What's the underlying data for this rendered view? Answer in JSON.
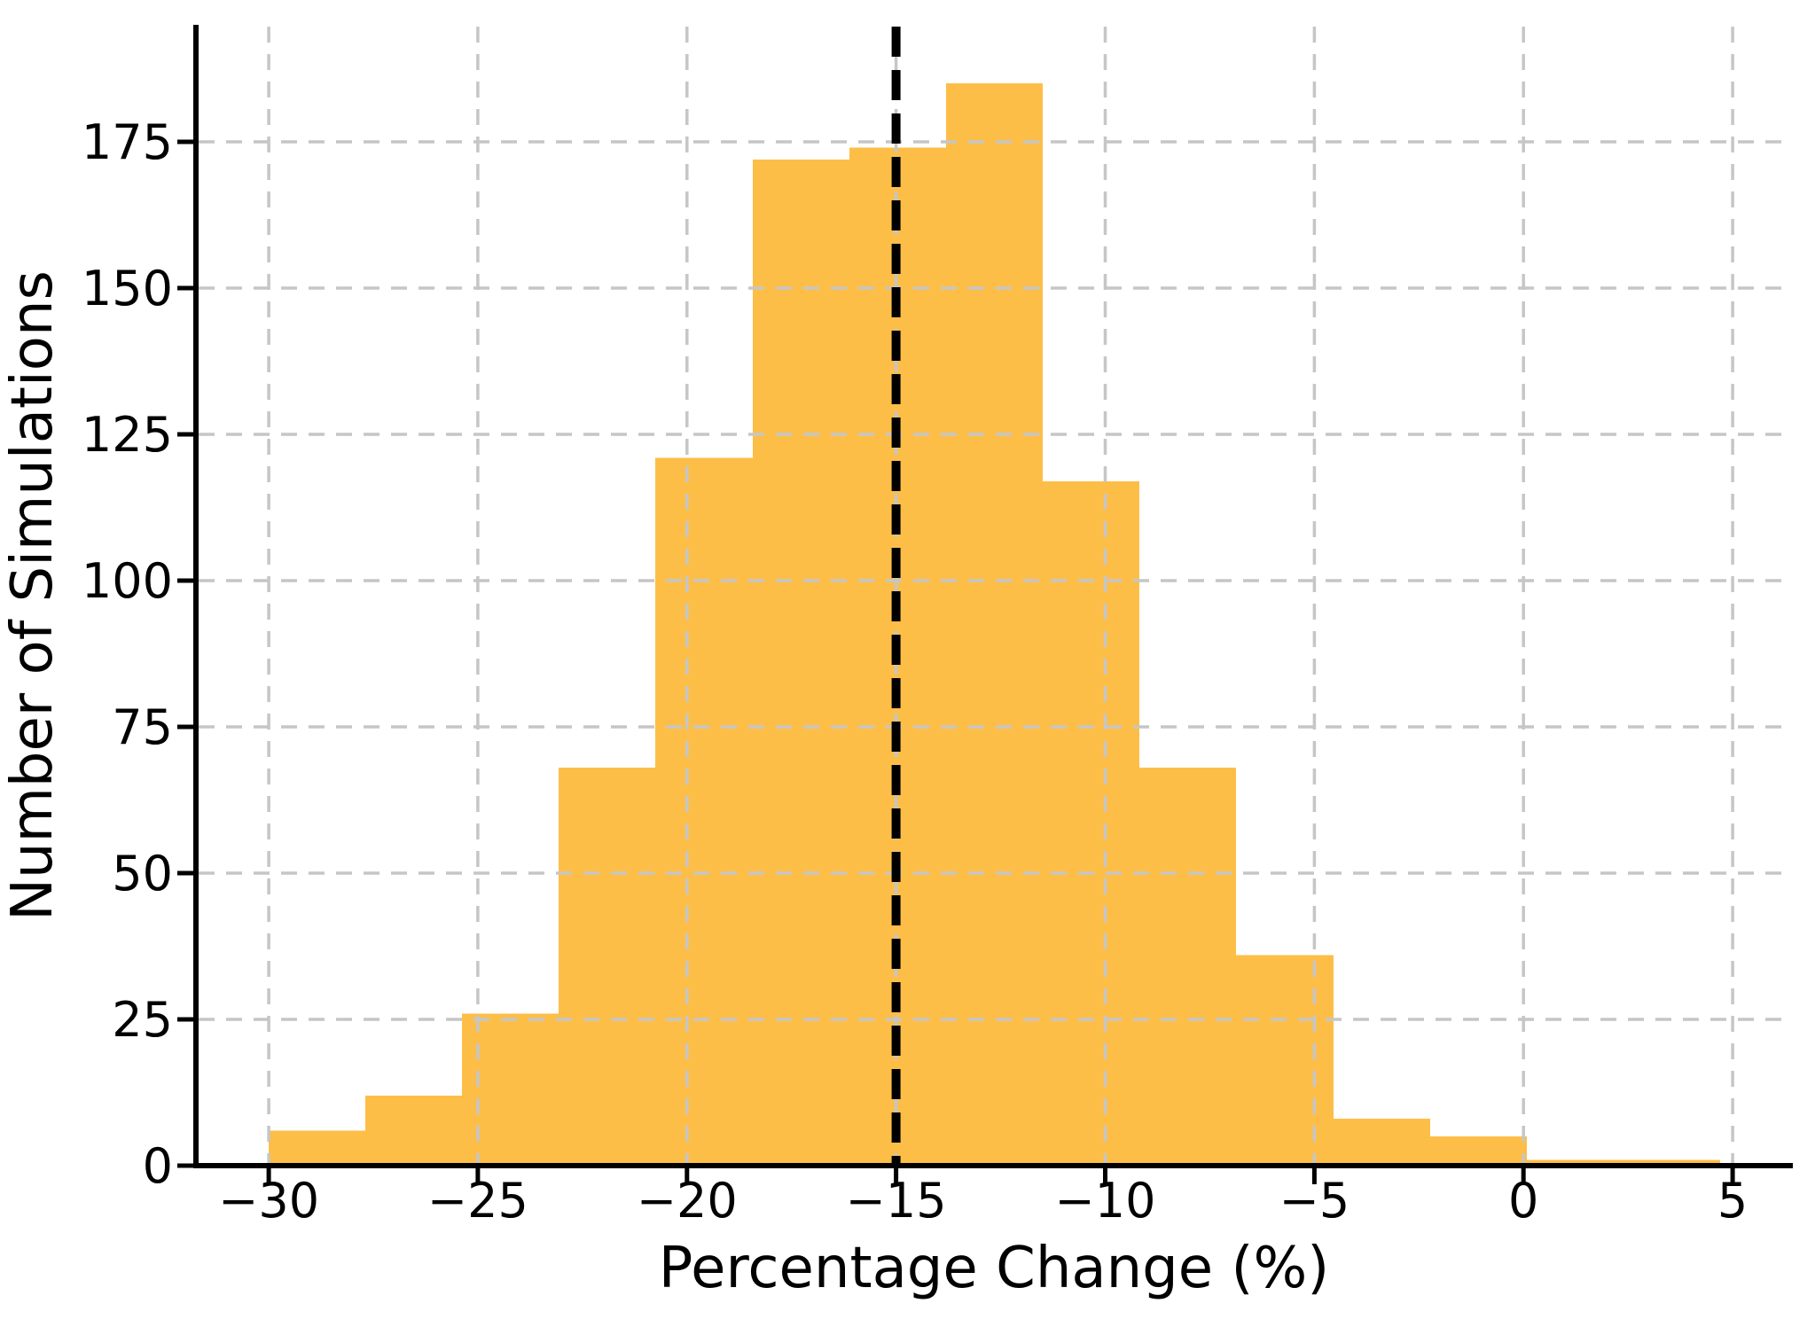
{
  "figure": {
    "background_color": "#ffffff",
    "text_color": "#000000"
  },
  "chart_data": {
    "type": "bar",
    "subtype": "histogram",
    "title": "",
    "xlabel": "Percentage Change (%)",
    "ylabel": "Number of Simulations",
    "bin_edges": [
      -30.0,
      -27.69,
      -25.37,
      -23.06,
      -20.75,
      -18.43,
      -16.12,
      -13.81,
      -11.49,
      -9.18,
      -6.87,
      -4.55,
      -2.24,
      0.07,
      2.39,
      4.7
    ],
    "values": [
      6,
      12,
      26,
      68,
      121,
      172,
      174,
      185,
      117,
      68,
      36,
      8,
      5,
      1,
      1
    ],
    "bar_color": "#FDBE48",
    "grid": true,
    "grid_color": "#C6C6C6",
    "grid_style": "dashed",
    "axis_color": "#000000",
    "vline": {
      "x": -15,
      "color": "#000000",
      "style": "dashed"
    },
    "xticks": [
      -30,
      -25,
      -20,
      -15,
      -10,
      -5,
      0,
      5
    ],
    "yticks": [
      0,
      25,
      50,
      75,
      100,
      125,
      150,
      175
    ],
    "xlim": [
      -31.74,
      6.44
    ],
    "ylim": [
      0,
      194.7
    ],
    "legend_position": "none"
  }
}
